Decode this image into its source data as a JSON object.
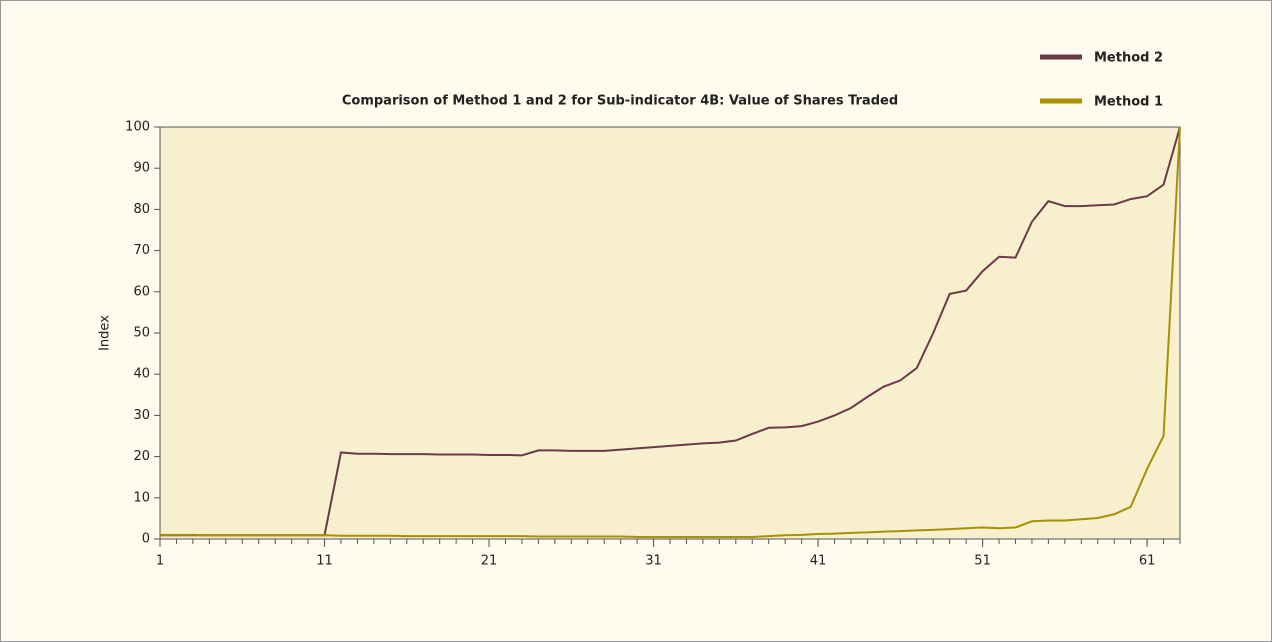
{
  "chart_data": {
    "type": "line",
    "title": "Comparison of Method 1 and 2 for Sub-indicator 4B: Value of Shares Traded",
    "ylabel": "Index",
    "x": [
      1,
      2,
      3,
      4,
      5,
      6,
      7,
      8,
      9,
      10,
      11,
      12,
      13,
      14,
      15,
      16,
      17,
      18,
      19,
      20,
      21,
      22,
      23,
      24,
      25,
      26,
      27,
      28,
      29,
      30,
      31,
      32,
      33,
      34,
      35,
      36,
      37,
      38,
      39,
      40,
      41,
      42,
      43,
      44,
      45,
      46,
      47,
      48,
      49,
      50,
      51,
      52,
      53,
      54,
      55,
      56,
      57,
      58,
      59,
      60,
      61,
      62,
      63
    ],
    "series": [
      {
        "name": "Method 2",
        "color": "#6b3a47",
        "values": [
          0.9,
          0.9,
          0.9,
          0.9,
          0.9,
          0.9,
          0.9,
          0.9,
          0.9,
          0.9,
          0.9,
          21.0,
          20.7,
          20.7,
          20.6,
          20.6,
          20.6,
          20.5,
          20.5,
          20.5,
          20.4,
          20.4,
          20.3,
          21.5,
          21.5,
          21.4,
          21.4,
          21.4,
          21.7,
          22.0,
          22.3,
          22.6,
          22.9,
          23.2,
          23.4,
          23.9,
          25.5,
          27.0,
          27.1,
          27.4,
          28.5,
          30.0,
          31.8,
          34.5,
          37.0,
          38.5,
          41.5,
          50.0,
          59.5,
          60.3,
          65.0,
          68.5,
          68.3,
          77.0,
          82.0,
          80.8,
          80.8,
          81.0,
          81.2,
          82.5,
          83.2,
          86.0,
          100
        ]
      },
      {
        "name": "Method 1",
        "color": "#a89000",
        "values": [
          1.0,
          1.0,
          1.0,
          0.9,
          0.9,
          0.9,
          0.9,
          0.9,
          0.9,
          0.9,
          0.9,
          0.8,
          0.8,
          0.8,
          0.8,
          0.7,
          0.7,
          0.7,
          0.7,
          0.7,
          0.7,
          0.7,
          0.7,
          0.6,
          0.6,
          0.6,
          0.6,
          0.6,
          0.6,
          0.5,
          0.5,
          0.5,
          0.5,
          0.5,
          0.5,
          0.5,
          0.5,
          0.7,
          0.9,
          1.0,
          1.2,
          1.3,
          1.5,
          1.6,
          1.8,
          1.9,
          2.1,
          2.2,
          2.4,
          2.6,
          2.8,
          2.6,
          2.8,
          4.3,
          4.5,
          4.5,
          4.8,
          5.1,
          6.0,
          7.8,
          17.0,
          25.0,
          100
        ]
      }
    ],
    "xlim": [
      1,
      63
    ],
    "xticks": [
      1,
      11,
      21,
      31,
      41,
      51,
      61
    ],
    "xminorticks": [
      1,
      2,
      3,
      4,
      5,
      6,
      7,
      8,
      9,
      10,
      11,
      12,
      13,
      14,
      15,
      16,
      17,
      18,
      19,
      20,
      21,
      22,
      23,
      24,
      25,
      26,
      27,
      28,
      29,
      30,
      31,
      32,
      33,
      34,
      35,
      36,
      37,
      38,
      39,
      40,
      41,
      42,
      43,
      44,
      45,
      46,
      47,
      48,
      49,
      50,
      51,
      52,
      53,
      54,
      55,
      56,
      57,
      58,
      59,
      60,
      61,
      62,
      63
    ],
    "ylim": [
      0,
      100
    ],
    "yticks": [
      0,
      10,
      20,
      30,
      40,
      50,
      60,
      70,
      80,
      90,
      100
    ],
    "grid": false,
    "legend": "top-right"
  }
}
